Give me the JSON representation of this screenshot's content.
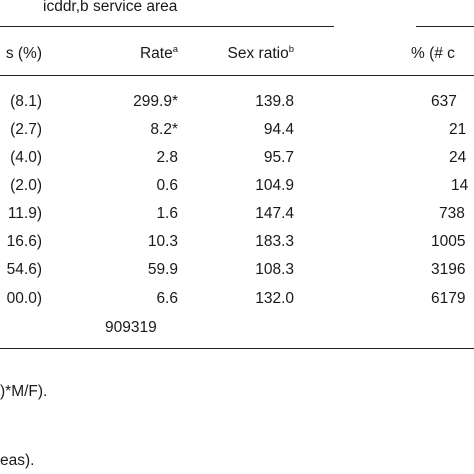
{
  "header": {
    "group_title": "icddr,b service area",
    "columns": {
      "pct": "s (%)",
      "rate": "Rate",
      "rate_sup": "a",
      "sex_ratio": "Sex ratio",
      "sex_ratio_sup": "b",
      "pct_n": "% (# c"
    }
  },
  "rows": [
    {
      "pct": "(8.1)",
      "rate": "299.9*",
      "sex_ratio": "139.8",
      "count": "637"
    },
    {
      "pct": "(2.7)",
      "rate": "8.2*",
      "sex_ratio": "94.4",
      "count": "21"
    },
    {
      "pct": "(4.0)",
      "rate": "2.8",
      "sex_ratio": "95.7",
      "count": "24"
    },
    {
      "pct": "(2.0)",
      "rate": "0.6",
      "sex_ratio": "104.9",
      "count": "14"
    },
    {
      "pct": "11.9)",
      "rate": "1.6",
      "sex_ratio": "147.4",
      "count": "738"
    },
    {
      "pct": "16.6)",
      "rate": "10.3",
      "sex_ratio": "183.3",
      "count": "1005"
    },
    {
      "pct": "54.6)",
      "rate": "59.9",
      "sex_ratio": "108.3",
      "count": "3196"
    },
    {
      "pct": "00.0)",
      "rate": "6.6",
      "sex_ratio": "132.0",
      "count": "6179"
    }
  ],
  "population_total": "909319",
  "footnotes": {
    "line1": ")*M/F).",
    "line2": "eas)."
  }
}
